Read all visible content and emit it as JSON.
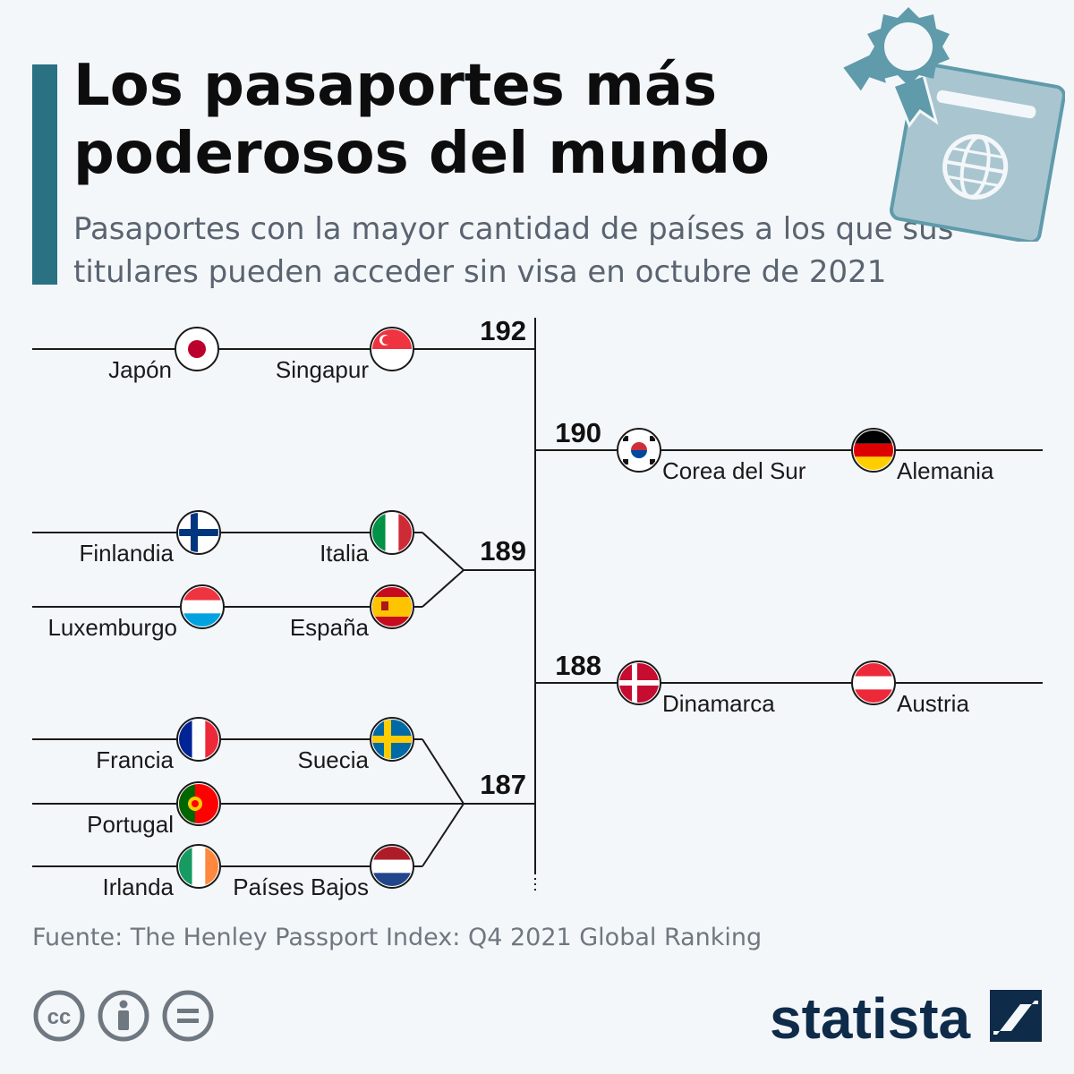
{
  "header": {
    "title": "Los pasaportes más poderosos del mundo",
    "subtitle": "Pasaportes con la mayor cantidad de países a los que sus titulares pueden acceder sin visa en octubre de 2021"
  },
  "chart_data": {
    "type": "bracket",
    "groups": [
      {
        "value": 192,
        "countries": [
          "Japón",
          "Singapur"
        ]
      },
      {
        "value": 190,
        "countries": [
          "Corea del Sur",
          "Alemania"
        ]
      },
      {
        "value": 189,
        "countries": [
          "Finlandia",
          "Italia",
          "Luxemburgo",
          "España"
        ]
      },
      {
        "value": 188,
        "countries": [
          "Dinamarca",
          "Austria"
        ]
      },
      {
        "value": 187,
        "countries": [
          "Francia",
          "Suecia",
          "Portugal",
          "Irlanda",
          "Países Bajos"
        ]
      }
    ]
  },
  "footer": {
    "source": "Fuente: The Henley Passport Index: Q4 2021 Global Ranking",
    "brand": "statista"
  },
  "colors": {
    "accent": "#2a7184",
    "line": "#1a1a1a",
    "brand": "#0e2b4a",
    "icon": "#5f9bab"
  }
}
